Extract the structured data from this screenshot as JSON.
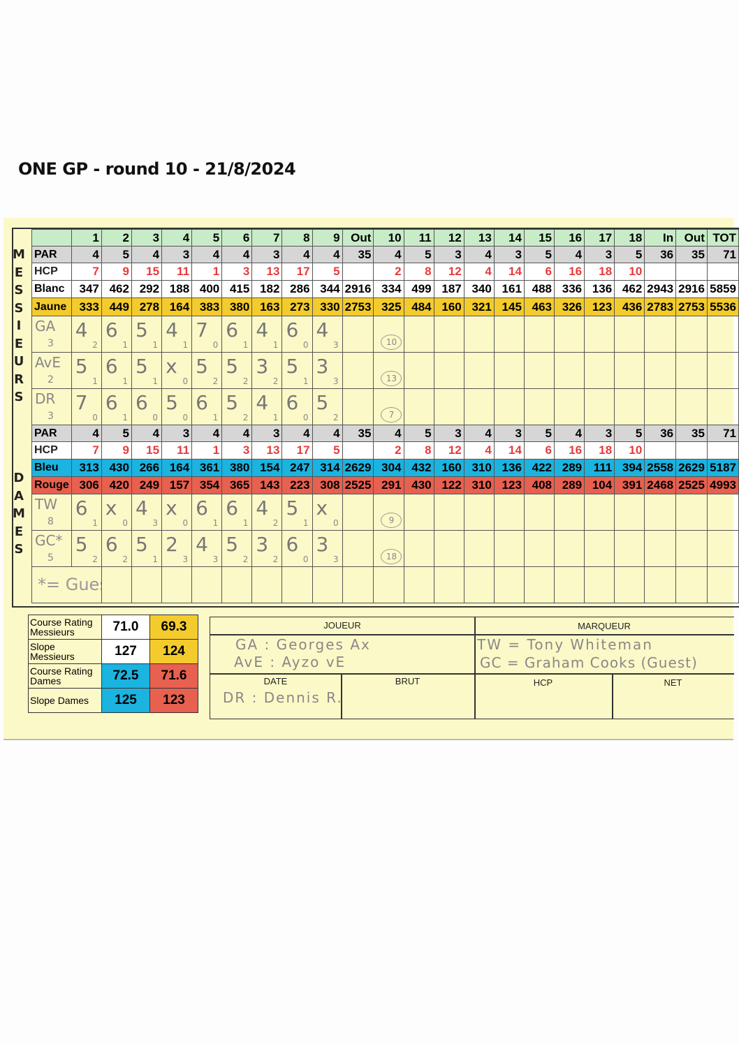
{
  "title": "ONE GP - round 10 - 21/8/2024",
  "side_labels": {
    "messieurs": [
      "M",
      "E",
      "S",
      "S",
      "I",
      "E",
      "U",
      "R",
      "S"
    ],
    "dames": [
      "D",
      "A",
      "M",
      "E",
      "S"
    ]
  },
  "columns": [
    "",
    "1",
    "2",
    "3",
    "4",
    "5",
    "6",
    "7",
    "8",
    "9",
    "Out",
    "10",
    "11",
    "12",
    "13",
    "14",
    "15",
    "16",
    "17",
    "18",
    "In",
    "Out",
    "TOT"
  ],
  "messieurs": {
    "par": [
      "PAR",
      "4",
      "5",
      "4",
      "3",
      "4",
      "4",
      "3",
      "4",
      "4",
      "35",
      "4",
      "5",
      "3",
      "4",
      "3",
      "5",
      "4",
      "3",
      "5",
      "36",
      "35",
      "71"
    ],
    "hcp": [
      "HCP",
      "7",
      "9",
      "15",
      "11",
      "1",
      "3",
      "13",
      "17",
      "5",
      "",
      "2",
      "8",
      "12",
      "4",
      "14",
      "6",
      "16",
      "18",
      "10",
      "",
      "",
      ""
    ],
    "blanc": [
      "Blanc",
      "347",
      "462",
      "292",
      "188",
      "400",
      "415",
      "182",
      "286",
      "344",
      "2916",
      "334",
      "499",
      "187",
      "340",
      "161",
      "488",
      "336",
      "136",
      "462",
      "2943",
      "2916",
      "5859"
    ],
    "jaune": [
      "Jaune",
      "333",
      "449",
      "278",
      "164",
      "383",
      "380",
      "163",
      "273",
      "330",
      "2753",
      "325",
      "484",
      "160",
      "321",
      "145",
      "463",
      "326",
      "123",
      "436",
      "2783",
      "2753",
      "5536"
    ],
    "players": [
      {
        "initials": "GA",
        "hcp": "3",
        "scores": [
          "4",
          "6",
          "5",
          "4",
          "7",
          "6",
          "4",
          "6",
          "4"
        ],
        "points": [
          "2",
          "1",
          "1",
          "1",
          "0",
          "1",
          "1",
          "0",
          "3"
        ],
        "total": "10"
      },
      {
        "initials": "AvE",
        "hcp": "2",
        "scores": [
          "5",
          "6",
          "5",
          "x",
          "5",
          "5",
          "3",
          "5",
          "3"
        ],
        "points": [
          "1",
          "1",
          "1",
          "0",
          "2",
          "2",
          "2",
          "1",
          "3"
        ],
        "total": "13"
      },
      {
        "initials": "DR",
        "hcp": "3",
        "scores": [
          "7",
          "6",
          "6",
          "5",
          "6",
          "5",
          "4",
          "6",
          "5"
        ],
        "points": [
          "0",
          "1",
          "0",
          "0",
          "1",
          "2",
          "1",
          "0",
          "2"
        ],
        "total": "7"
      }
    ]
  },
  "dames": {
    "par": [
      "PAR",
      "4",
      "5",
      "4",
      "3",
      "4",
      "4",
      "3",
      "4",
      "4",
      "35",
      "4",
      "5",
      "3",
      "4",
      "3",
      "5",
      "4",
      "3",
      "5",
      "36",
      "35",
      "71"
    ],
    "hcp": [
      "HCP",
      "7",
      "9",
      "15",
      "11",
      "1",
      "3",
      "13",
      "17",
      "5",
      "",
      "2",
      "8",
      "12",
      "4",
      "14",
      "6",
      "16",
      "18",
      "10",
      "",
      "",
      ""
    ],
    "bleu": [
      "Bleu",
      "313",
      "430",
      "266",
      "164",
      "361",
      "380",
      "154",
      "247",
      "314",
      "2629",
      "304",
      "432",
      "160",
      "310",
      "136",
      "422",
      "289",
      "111",
      "394",
      "2558",
      "2629",
      "5187"
    ],
    "rouge": [
      "Rouge",
      "306",
      "420",
      "249",
      "157",
      "354",
      "365",
      "143",
      "223",
      "308",
      "2525",
      "291",
      "430",
      "122",
      "310",
      "123",
      "408",
      "289",
      "104",
      "391",
      "2468",
      "2525",
      "4993"
    ],
    "players": [
      {
        "initials": "TW",
        "hcp": "8",
        "scores": [
          "6",
          "x",
          "4",
          "x",
          "6",
          "6",
          "4",
          "5",
          "x"
        ],
        "points": [
          "1",
          "0",
          "3",
          "0",
          "1",
          "1",
          "2",
          "1",
          "0"
        ],
        "total": "9"
      },
      {
        "initials": "GC*",
        "hcp": "5",
        "scores": [
          "5",
          "6",
          "5",
          "2",
          "4",
          "5",
          "3",
          "6",
          "3"
        ],
        "points": [
          "2",
          "2",
          "1",
          "3",
          "3",
          "2",
          "2",
          "0",
          "3"
        ],
        "total": "18"
      }
    ],
    "note": "*= Guest"
  },
  "ratings": {
    "rows": [
      {
        "label": "Course Rating Messieurs",
        "v1": "71.0",
        "v2": "69.3",
        "c1": "#ffffff",
        "c2": "#f4cb2c"
      },
      {
        "label": "Slope Messieurs",
        "v1": "127",
        "v2": "124",
        "c1": "#ffffff",
        "c2": "#f4cb2c"
      },
      {
        "label": "Course Rating Dames",
        "v1": "72.5",
        "v2": "71.6",
        "c1": "#1bb3e0",
        "c2": "#e8604f"
      },
      {
        "label": "Slope Dames",
        "v1": "125",
        "v2": "123",
        "c1": "#1bb3e0",
        "c2": "#e8604f"
      }
    ]
  },
  "signature": {
    "joueur": "JOUEUR",
    "marqueur": "MARQUEUR",
    "date": "DATE",
    "brut": "BRUT",
    "hcp": "HCP",
    "net": "NET",
    "hand_joueur": [
      "GA : Georges Ax",
      "AvE : Ayzo vE",
      "DR : Dennis R."
    ],
    "hand_marqueur": [
      "TW = Tony Whiteman",
      "GC = Graham Cooks (Guest)"
    ]
  }
}
